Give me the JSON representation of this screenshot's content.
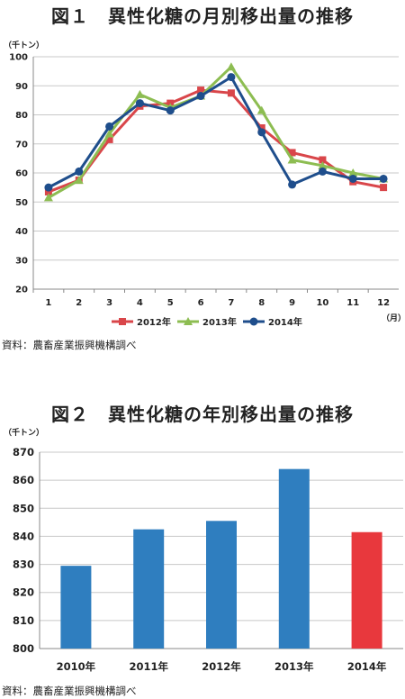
{
  "figure1": {
    "title": "図１　異性化糖の月別移出量の推移",
    "unit_y": "（千トン）",
    "unit_x": "（月）",
    "source": "資料：農畜産業振興機構調べ"
  },
  "figure2": {
    "title": "図２　異性化糖の年別移出量の推移",
    "unit_y": "（千トン）",
    "source": "資料：農畜産業振興機構調べ"
  },
  "chart_data": [
    {
      "type": "line",
      "title": "図１　異性化糖の月別移出量の推移",
      "xlabel": "（月）",
      "ylabel": "（千トン）",
      "categories": [
        "1",
        "2",
        "3",
        "4",
        "5",
        "6",
        "7",
        "8",
        "9",
        "10",
        "11",
        "12"
      ],
      "ylim": [
        20,
        100
      ],
      "yticks": [
        20,
        30,
        40,
        50,
        60,
        70,
        80,
        90,
        100
      ],
      "grid": true,
      "legend": "bottom",
      "series": [
        {
          "name": "2012年",
          "color": "#d9464a",
          "marker": "square",
          "values": [
            53.5,
            57.5,
            71.5,
            83,
            84,
            88.5,
            87.5,
            75.5,
            67,
            64.5,
            57,
            55
          ]
        },
        {
          "name": "2013年",
          "color": "#8dbd52",
          "marker": "triangle",
          "values": [
            51.5,
            57.5,
            73.5,
            87,
            82.5,
            86.5,
            96.5,
            81.5,
            64.5,
            62.5,
            60,
            58
          ]
        },
        {
          "name": "2014年",
          "color": "#1f4e8c",
          "marker": "circle",
          "values": [
            55,
            60.5,
            76,
            84,
            81.5,
            86.5,
            93,
            74,
            56,
            60.5,
            58,
            58
          ]
        }
      ]
    },
    {
      "type": "bar",
      "title": "図２　異性化糖の年別移出量の推移",
      "ylabel": "（千トン）",
      "categories": [
        "2010年",
        "2011年",
        "2012年",
        "2013年",
        "2014年"
      ],
      "values": [
        829.5,
        842.5,
        845.5,
        864,
        841.5
      ],
      "colors": [
        "#2f7ebf",
        "#2f7ebf",
        "#2f7ebf",
        "#2f7ebf",
        "#e8383d"
      ],
      "ylim": [
        800,
        870
      ],
      "yticks": [
        800,
        810,
        820,
        830,
        840,
        850,
        860,
        870
      ],
      "grid": true
    }
  ]
}
